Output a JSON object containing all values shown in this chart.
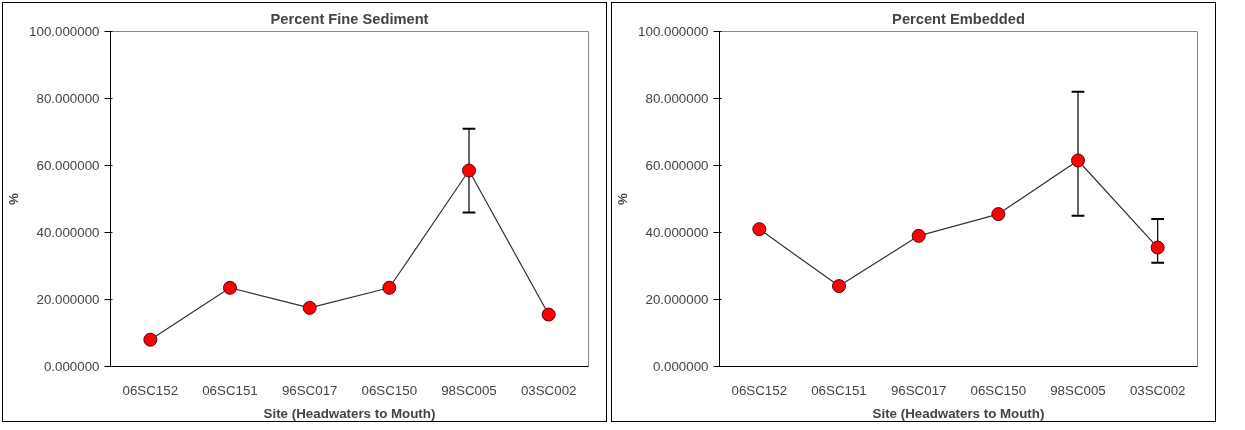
{
  "chart_data": [
    {
      "type": "line",
      "title": "Percent Fine Sediment",
      "xlabel": "Site (Headwaters to Mouth)",
      "ylabel": "%",
      "categories": [
        "06SC152",
        "06SC151",
        "96SC017",
        "06SC150",
        "98SC005",
        "03SC002"
      ],
      "series": [
        {
          "color": "#ff0000",
          "values": [
            8,
            23.5,
            17.5,
            23.5,
            58.5,
            15.5
          ],
          "errors": [
            null,
            null,
            null,
            null,
            [
              46,
              71
            ],
            null
          ]
        }
      ],
      "ylim": [
        0,
        100
      ],
      "yticks": [
        {
          "value": 0,
          "label": "0.000000"
        },
        {
          "value": 20,
          "label": "20.000000"
        },
        {
          "value": 40,
          "label": "40.000000"
        },
        {
          "value": 60,
          "label": "60.000000"
        },
        {
          "value": 80,
          "label": "80.000000"
        },
        {
          "value": 100,
          "label": "100.000000"
        }
      ],
      "marker": "circle",
      "line_style": "solid"
    },
    {
      "type": "line",
      "title": "Percent Embedded",
      "xlabel": "Site (Headwaters to Mouth)",
      "ylabel": "%",
      "categories": [
        "06SC152",
        "06SC151",
        "96SC017",
        "06SC150",
        "98SC005",
        "03SC002"
      ],
      "series": [
        {
          "color": "#ff0000",
          "values": [
            41,
            24,
            39,
            45.5,
            61.5,
            35.5
          ],
          "errors": [
            null,
            null,
            null,
            null,
            [
              45,
              82
            ],
            [
              31,
              44
            ]
          ]
        }
      ],
      "ylim": [
        0,
        100
      ],
      "yticks": [
        {
          "value": 0,
          "label": "0.000000"
        },
        {
          "value": 20,
          "label": "20.000000"
        },
        {
          "value": 40,
          "label": "40.000000"
        },
        {
          "value": 60,
          "label": "60.000000"
        },
        {
          "value": 80,
          "label": "80.000000"
        },
        {
          "value": 100,
          "label": "100.000000"
        }
      ],
      "marker": "circle",
      "line_style": "solid"
    }
  ]
}
